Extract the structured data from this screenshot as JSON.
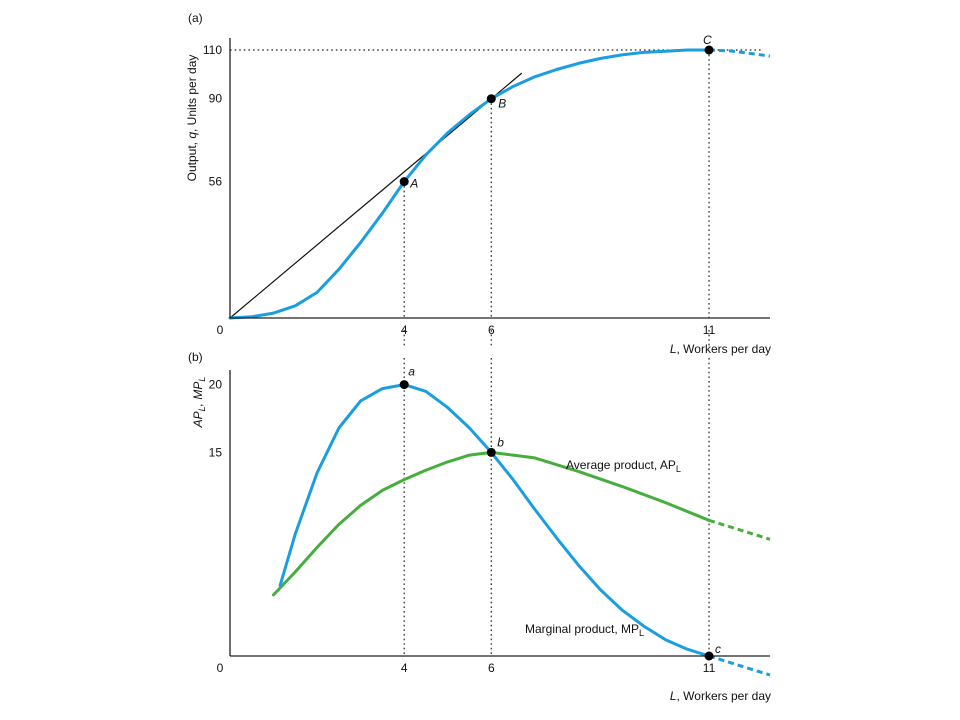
{
  "chart_data": [
    {
      "type": "line",
      "panel_label": "(a)",
      "xlabel_var": "L",
      "xlabel": ", Workers per day",
      "ylabel_parts": [
        "Output, ",
        "q",
        ", Units per day"
      ],
      "xlim": [
        0,
        12.4
      ],
      "ylim": [
        0,
        110
      ],
      "origin_label": "0",
      "x_ticks": [
        4,
        6,
        11
      ],
      "y_ticks": [
        56,
        90,
        110
      ],
      "series": [
        {
          "color": "#1a9ee0",
          "x": [
            0,
            0.5,
            1,
            1.5,
            2,
            2.5,
            3,
            3.5,
            4,
            4.5,
            5,
            5.5,
            6,
            6.5,
            7,
            7.5,
            8,
            8.5,
            9,
            9.5,
            10,
            10.5,
            11
          ],
          "y": [
            0,
            0.5,
            2,
            5,
            10.5,
            20,
            31,
            43,
            56,
            67,
            76,
            83.5,
            90,
            95,
            99,
            102,
            104.5,
            106.5,
            108,
            109,
            109.5,
            110,
            110
          ],
          "dashed_x": [
            11,
            11.5,
            12,
            12.4
          ],
          "dashed_y": [
            110,
            109.6,
            108.5,
            107.5
          ]
        }
      ],
      "tangent_line": {
        "x": [
          0,
          6.7
        ],
        "y": [
          0,
          100.5
        ]
      },
      "points": [
        {
          "label": "A",
          "x": 4,
          "y": 56
        },
        {
          "label": "B",
          "x": 6,
          "y": 90
        },
        {
          "label": "C",
          "x": 11,
          "y": 110
        }
      ]
    },
    {
      "type": "line",
      "panel_label": "(b)",
      "xlabel_var": "L",
      "xlabel": ", Workers per day",
      "ylabel_parts": [
        "AP",
        "L",
        ", MP",
        "L"
      ],
      "xlim": [
        0,
        12.4
      ],
      "ylim": [
        0,
        21
      ],
      "origin_label": "0",
      "x_ticks": [
        4,
        6,
        11
      ],
      "y_ticks": [
        15,
        20
      ],
      "series": [
        {
          "name_parts": [
            "Average product, AP",
            "L"
          ],
          "color": "#46ad3e",
          "x": [
            1,
            1.5,
            2,
            2.5,
            3,
            3.5,
            4,
            4.5,
            5,
            5.5,
            6,
            7,
            8,
            9,
            10,
            11
          ],
          "y": [
            4.5,
            6.2,
            8,
            9.7,
            11.1,
            12.2,
            13,
            13.7,
            14.3,
            14.8,
            15,
            14.6,
            13.6,
            12.5,
            11.3,
            10
          ],
          "dashed_x": [
            11,
            11.5,
            12,
            12.4
          ],
          "dashed_y": [
            10,
            9.5,
            9,
            8.6
          ]
        },
        {
          "name_parts": [
            "Marginal product, MP",
            "L"
          ],
          "color": "#1a9ee0",
          "x": [
            1.15,
            1.5,
            2,
            2.5,
            3,
            3.5,
            4,
            4.5,
            5,
            5.5,
            6,
            6.5,
            7,
            7.5,
            8,
            8.5,
            9,
            9.5,
            10,
            10.5,
            11
          ],
          "y": [
            5.2,
            9,
            13.5,
            16.8,
            18.8,
            19.7,
            20,
            19.5,
            18.3,
            16.8,
            15,
            13,
            10.8,
            8.7,
            6.7,
            4.9,
            3.4,
            2.2,
            1.2,
            0.5,
            0
          ],
          "dashed_x": [
            11,
            11.5,
            12,
            12.4
          ],
          "dashed_y": [
            0,
            -0.5,
            -1,
            -1.4
          ]
        }
      ],
      "points": [
        {
          "label": "a",
          "x": 4,
          "y": 20
        },
        {
          "label": "b",
          "x": 6,
          "y": 15
        },
        {
          "label": "c",
          "x": 11,
          "y": 0
        }
      ]
    }
  ]
}
